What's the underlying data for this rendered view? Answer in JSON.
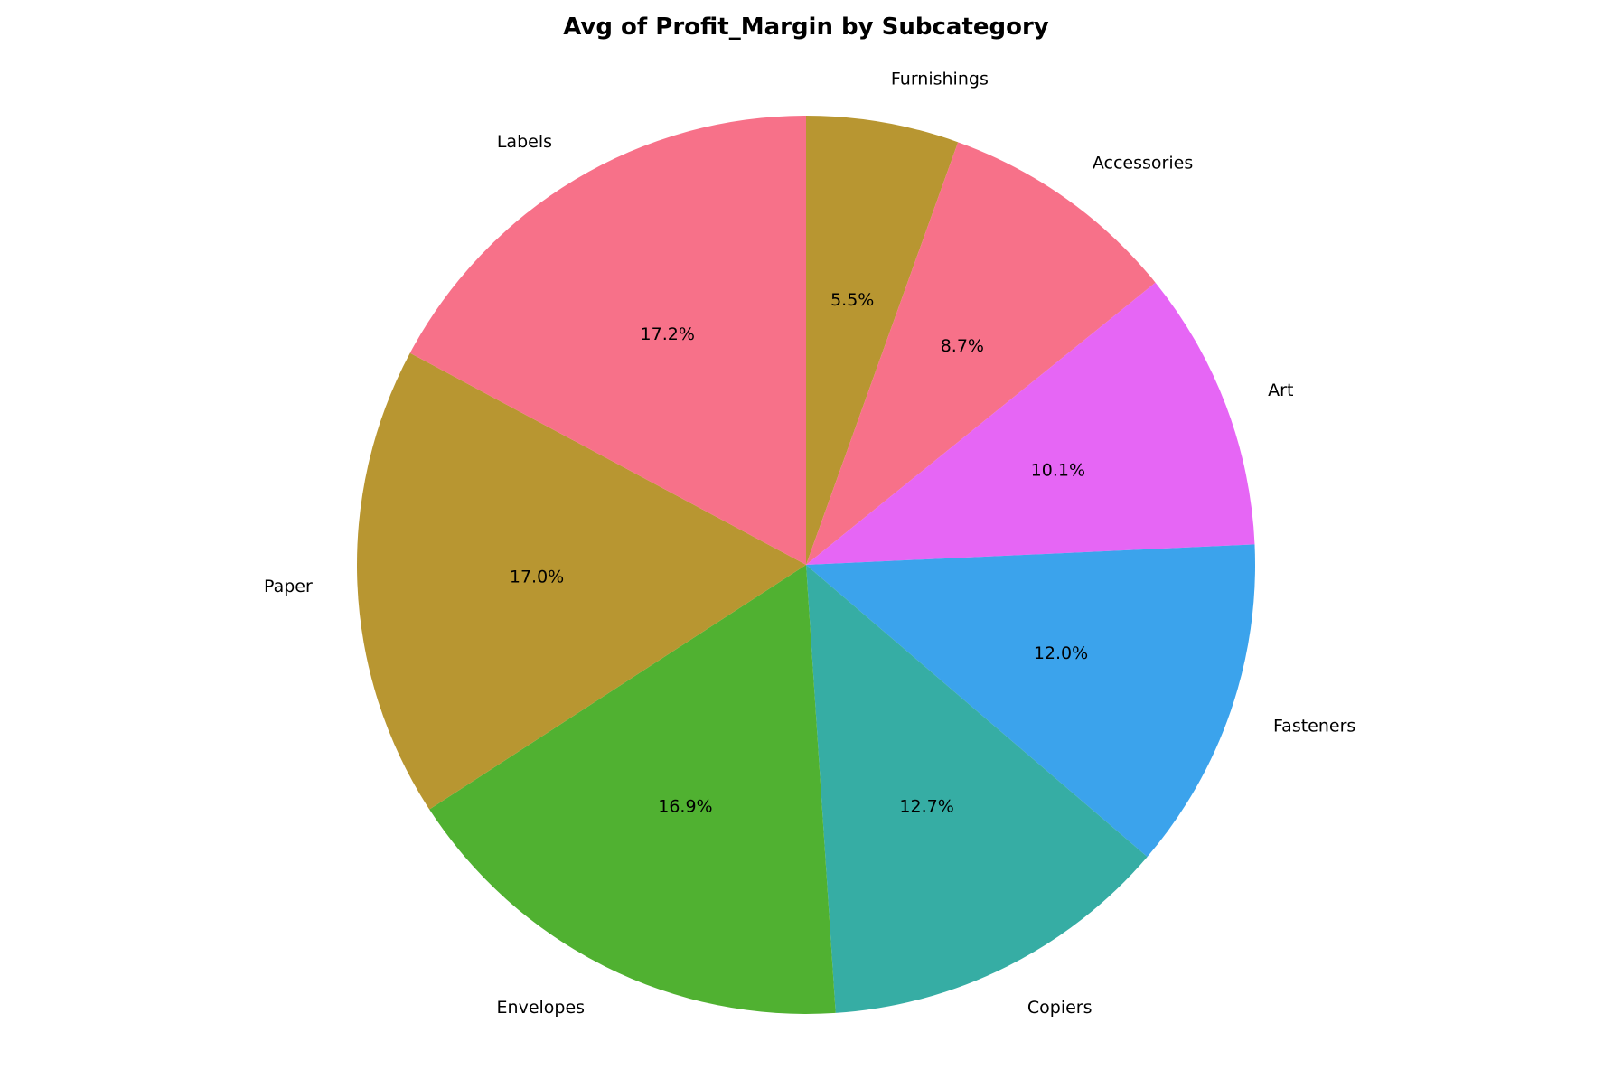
{
  "chart_data": {
    "type": "pie",
    "title": "Avg of Profit_Margin by Subcategory",
    "start_angle_deg": 90,
    "direction": "clockwise",
    "slices": [
      {
        "label": "Furnishings",
        "percent": 5.5,
        "percent_label": "5.5%",
        "color": "#b89631"
      },
      {
        "label": "Accessories",
        "percent": 8.7,
        "percent_label": "8.7%",
        "color": "#f77189"
      },
      {
        "label": "Art",
        "percent": 10.1,
        "percent_label": "10.1%",
        "color": "#e666f5"
      },
      {
        "label": "Fasteners",
        "percent": 12.0,
        "percent_label": "12.0%",
        "color": "#3ba3ec"
      },
      {
        "label": "Copiers",
        "percent": 12.7,
        "percent_label": "12.7%",
        "color": "#36ada4"
      },
      {
        "label": "Envelopes",
        "percent": 16.9,
        "percent_label": "16.9%",
        "color": "#50b131"
      },
      {
        "label": "Paper",
        "percent": 17.0,
        "percent_label": "17.0%",
        "color": "#b89631"
      },
      {
        "label": "Labels",
        "percent": 17.2,
        "percent_label": "17.2%",
        "color": "#f77189"
      }
    ]
  }
}
